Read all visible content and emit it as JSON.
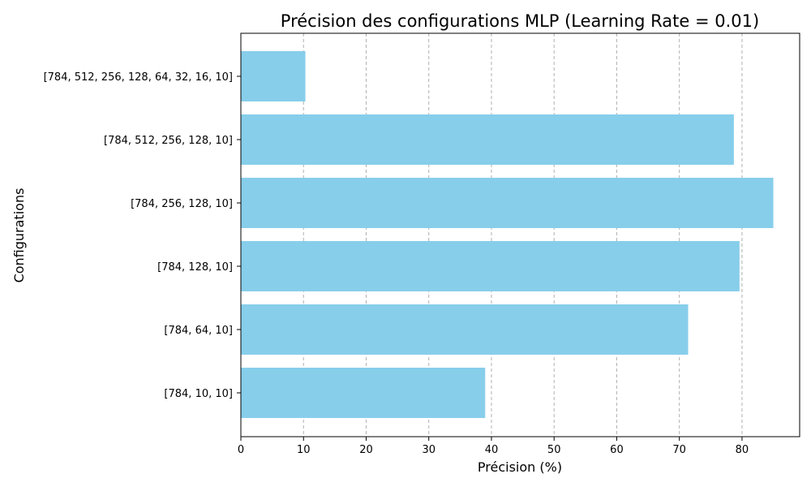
{
  "chart_data": {
    "type": "bar",
    "orientation": "horizontal",
    "title": "Précision des configurations MLP (Learning Rate = 0.01)",
    "xlabel": "Précision (%)",
    "ylabel": "Configurations",
    "categories": [
      "[784, 10, 10]",
      "[784, 64, 10]",
      "[784, 128, 10]",
      "[784, 256, 128, 10]",
      "[784, 512, 256, 128, 10]",
      "[784, 512, 256, 128, 64, 32, 16, 10]"
    ],
    "values": [
      39.0,
      71.4,
      79.6,
      85.0,
      78.7,
      10.3
    ],
    "xlim": [
      0,
      89.2
    ],
    "xticks": [
      0,
      10,
      20,
      30,
      40,
      50,
      60,
      70,
      80
    ],
    "grid": "x-dashed",
    "bar_color": "#87ceeb"
  }
}
